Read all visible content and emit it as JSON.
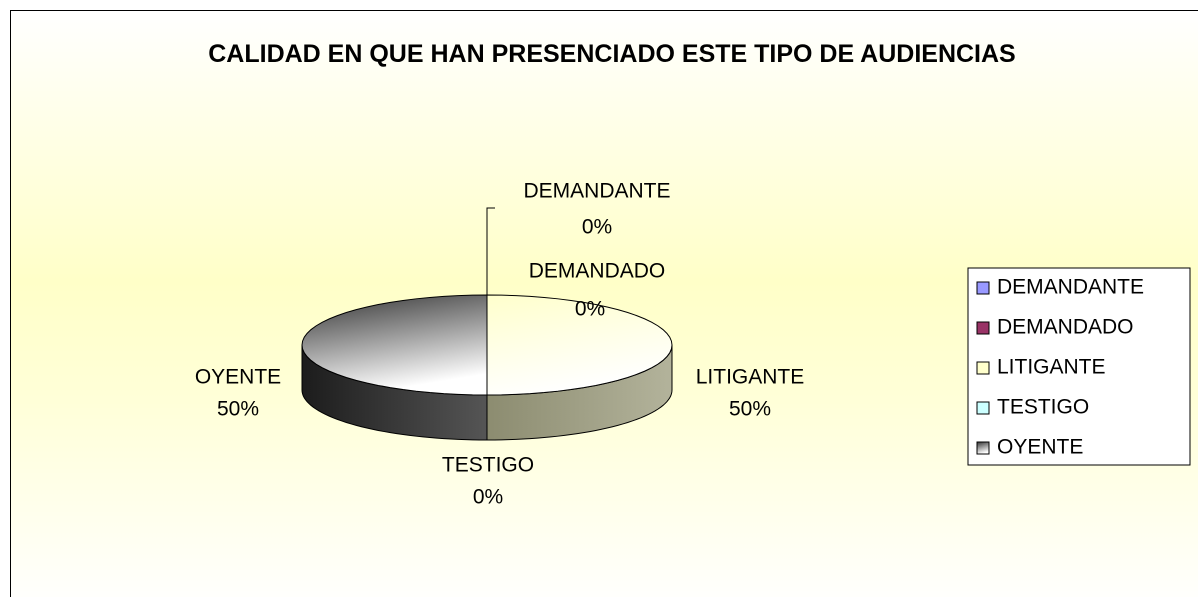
{
  "chart_data": {
    "type": "pie",
    "title": "CALIDAD EN QUE HAN PRESENCIADO ESTE TIPO DE AUDIENCIAS",
    "categories": [
      "DEMANDANTE",
      "DEMANDADO",
      "LITIGANTE",
      "TESTIGO",
      "OYENTE"
    ],
    "values": [
      0,
      0,
      50,
      0,
      50
    ],
    "value_labels": [
      "0%",
      "0%",
      "50%",
      "0%",
      "50%"
    ],
    "colors": [
      "#9999ff",
      "#993366",
      "#ffffcc",
      "#ccffff",
      "#333333"
    ],
    "legend": "right"
  }
}
